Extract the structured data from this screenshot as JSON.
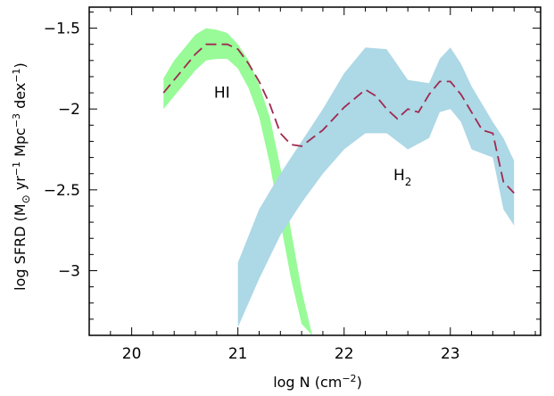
{
  "chart_data": {
    "type": "area",
    "xlabel": {
      "main": "log N (cm",
      "sup": "−2",
      "tail": ")"
    },
    "ylabel": {
      "p1": "log SFRD (M",
      "sub_sym": "⊙",
      "p2": " yr",
      "sup1": "−1",
      "p3": " Mpc",
      "sup2": "−3",
      "p4": " dex",
      "sup3": "−1",
      "p5": ")"
    },
    "xlim": [
      19.6,
      23.85
    ],
    "ylim": [
      -3.4,
      -1.37
    ],
    "x_ticks": [
      {
        "value": 20,
        "label": "20"
      },
      {
        "value": 21,
        "label": "21"
      },
      {
        "value": 22,
        "label": "22"
      },
      {
        "value": 23,
        "label": "23"
      }
    ],
    "y_ticks": [
      {
        "value": -1.5,
        "label": "−1.5"
      },
      {
        "value": -2,
        "label": "−2"
      },
      {
        "value": -2.5,
        "label": "−2.5"
      },
      {
        "value": -3,
        "label": "−3"
      }
    ],
    "annotations": [
      {
        "text": "HI",
        "x": 20.85,
        "y": -1.93
      },
      {
        "text": "H",
        "sub": "2",
        "x": 22.55,
        "y": -2.44
      }
    ],
    "colors": {
      "hi_band": "#98fb98",
      "h2_band": "#add8e6",
      "total_line": "#a0294f"
    },
    "series": [
      {
        "kind": "band",
        "x": [
          20.3,
          20.4,
          20.5,
          20.6,
          20.7,
          20.8,
          20.9,
          21.0,
          21.1,
          21.2,
          21.3,
          21.4,
          21.5,
          21.6,
          21.7
        ],
        "lower": [
          -2.0,
          -1.92,
          -1.84,
          -1.76,
          -1.7,
          -1.69,
          -1.69,
          -1.75,
          -1.87,
          -2.05,
          -2.34,
          -2.7,
          -3.05,
          -3.33,
          -3.4
        ],
        "upper": [
          -1.81,
          -1.7,
          -1.62,
          -1.54,
          -1.5,
          -1.51,
          -1.53,
          -1.6,
          -1.7,
          -1.85,
          -2.05,
          -2.36,
          -2.75,
          -3.12,
          -3.4
        ]
      },
      {
        "kind": "band",
        "x": [
          21.0,
          21.2,
          21.4,
          21.6,
          21.8,
          22.0,
          22.2,
          22.4,
          22.6,
          22.8,
          22.9,
          23.0,
          23.1,
          23.2,
          23.4,
          23.5,
          23.6
        ],
        "lower": [
          -3.35,
          -3.05,
          -2.78,
          -2.58,
          -2.4,
          -2.25,
          -2.15,
          -2.15,
          -2.25,
          -2.18,
          -2.02,
          -2.0,
          -2.08,
          -2.25,
          -2.3,
          -2.62,
          -2.72
        ],
        "upper": [
          -2.95,
          -2.62,
          -2.4,
          -2.2,
          -2.0,
          -1.78,
          -1.62,
          -1.63,
          -1.82,
          -1.84,
          -1.69,
          -1.62,
          -1.72,
          -1.86,
          -2.08,
          -2.18,
          -2.32
        ]
      },
      {
        "kind": "line",
        "x": [
          20.3,
          20.4,
          20.5,
          20.6,
          20.7,
          20.8,
          20.9,
          21.0,
          21.1,
          21.2,
          21.3,
          21.4,
          21.5,
          21.6,
          21.8,
          22.0,
          22.2,
          22.3,
          22.4,
          22.5,
          22.6,
          22.7,
          22.8,
          22.9,
          23.0,
          23.1,
          23.2,
          23.3,
          23.4,
          23.5,
          23.6
        ],
        "y": [
          -1.9,
          -1.82,
          -1.74,
          -1.66,
          -1.6,
          -1.6,
          -1.6,
          -1.63,
          -1.72,
          -1.83,
          -1.97,
          -2.15,
          -2.22,
          -2.23,
          -2.13,
          -1.99,
          -1.88,
          -1.92,
          -2.0,
          -2.06,
          -2.0,
          -2.02,
          -1.91,
          -1.83,
          -1.83,
          -1.91,
          -2.02,
          -2.13,
          -2.15,
          -2.45,
          -2.52
        ]
      }
    ]
  }
}
